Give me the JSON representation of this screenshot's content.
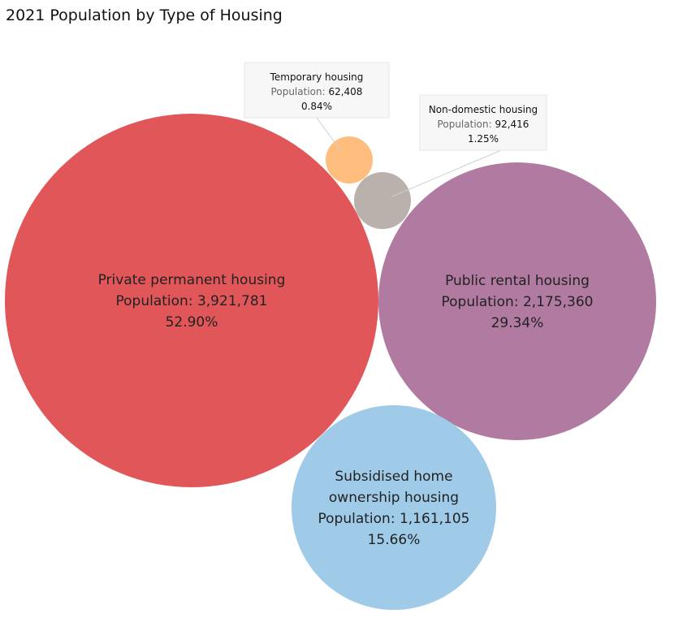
{
  "title": "2021 Population by Type of Housing",
  "chart_data": {
    "type": "bubble",
    "title": "2021 Population by Type of Housing",
    "value_label": "Population:",
    "series": [
      {
        "name": "Private permanent housing",
        "label_lines": [
          "Private permanent housing"
        ],
        "value": 3921781,
        "value_text": "3,921,781",
        "percent": "52.90%",
        "color": "#E15759"
      },
      {
        "name": "Public rental housing",
        "label_lines": [
          "Public rental housing"
        ],
        "value": 2175360,
        "value_text": "2,175,360",
        "percent": "29.34%",
        "color": "#B07AA1"
      },
      {
        "name": "Subsidised home ownership housing",
        "label_lines": [
          "Subsidised home",
          "ownership housing"
        ],
        "value": 1161105,
        "value_text": "1,161,105",
        "percent": "15.66%",
        "color": "#A0CBE8"
      },
      {
        "name": "Non-domestic housing",
        "label_lines": [
          "Non-domestic housing"
        ],
        "value": 92416,
        "value_text": "92,416",
        "percent": "1.25%",
        "color": "#BAB0AC"
      },
      {
        "name": "Temporary housing",
        "label_lines": [
          "Temporary housing"
        ],
        "value": 62408,
        "value_text": "62,408",
        "percent": "0.84%",
        "color": "#FFBE7D"
      }
    ]
  }
}
